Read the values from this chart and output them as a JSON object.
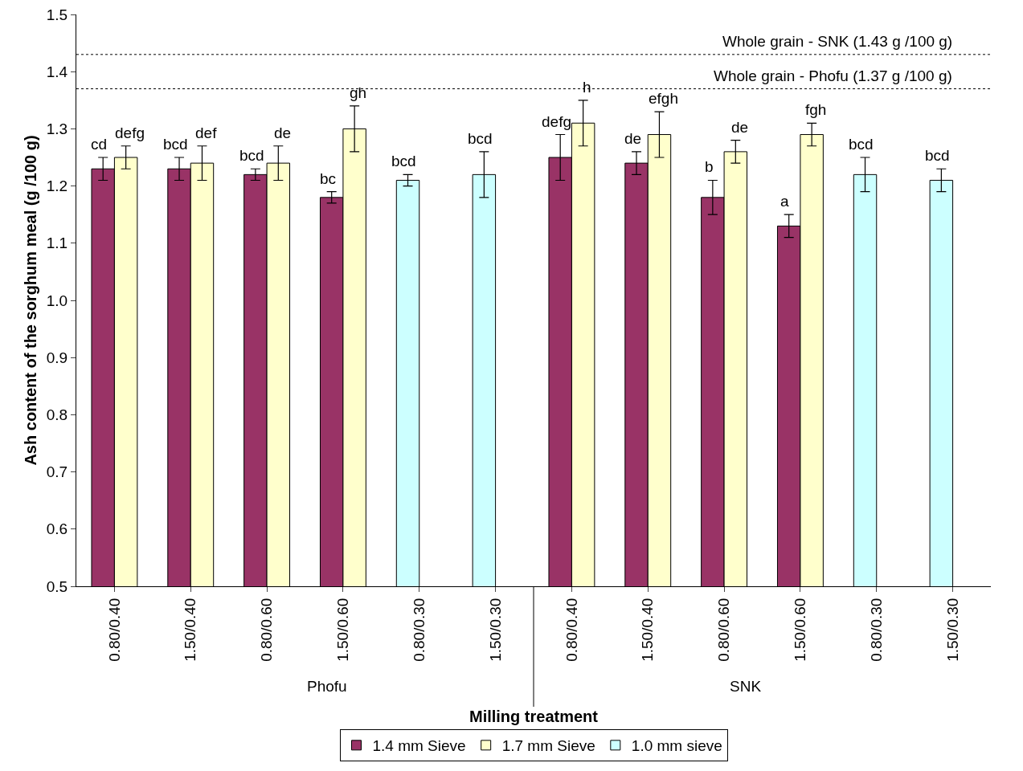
{
  "chart_data": {
    "type": "bar",
    "xlabel": "Milling treatment",
    "ylabel": "Ash content of the sorghum meal (g /100 g)",
    "categories": [
      "0.80/0.40",
      "1.50/0.40",
      "0.80/0.60",
      "1.50/0.60",
      "0.80/0.30",
      "1.50/0.30",
      "0.80/0.40",
      "1.50/0.40",
      "0.80/0.60",
      "1.50/0.60",
      "0.80/0.30",
      "1.50/0.30"
    ],
    "series": [
      {
        "name": "1.4 mm Sieve",
        "color": "#993366",
        "values": [
          1.23,
          1.23,
          1.22,
          1.18,
          null,
          null,
          1.25,
          1.24,
          1.18,
          1.13,
          null,
          null
        ],
        "errors": [
          0.02,
          0.02,
          0.01,
          0.01,
          null,
          null,
          0.04,
          0.02,
          0.03,
          0.02,
          null,
          null
        ],
        "value_labels": [
          "cd",
          "bcd",
          "bcd",
          "bc",
          null,
          null,
          "defg",
          "de",
          "b",
          "a",
          null,
          null
        ]
      },
      {
        "name": "1.7 mm Sieve",
        "color": "#ffffcc",
        "values": [
          1.25,
          1.24,
          1.24,
          1.3,
          null,
          null,
          1.31,
          1.29,
          1.26,
          1.29,
          null,
          null
        ],
        "errors": [
          0.02,
          0.03,
          0.03,
          0.04,
          null,
          null,
          0.04,
          0.04,
          0.02,
          0.02,
          null,
          null
        ],
        "value_labels": [
          "defg",
          "def",
          "de",
          "gh",
          null,
          null,
          "h",
          "efgh",
          "de",
          "fgh",
          null,
          null
        ]
      },
      {
        "name": "1.0 mm sieve",
        "color": "#ccffff",
        "values": [
          null,
          null,
          null,
          null,
          1.21,
          1.22,
          null,
          null,
          null,
          null,
          1.22,
          1.21
        ],
        "errors": [
          null,
          null,
          null,
          null,
          0.01,
          0.04,
          null,
          null,
          null,
          null,
          0.03,
          0.02
        ],
        "value_labels": [
          null,
          null,
          null,
          null,
          "bcd",
          "bcd",
          null,
          null,
          null,
          null,
          "bcd",
          "bcd"
        ]
      }
    ],
    "ylim": [
      0.5,
      1.5
    ],
    "yticks": [
      0.5,
      0.6,
      0.7,
      0.8,
      0.9,
      {
        "value": 1,
        "label": "1.0"
      },
      1.1,
      1.2,
      1.3,
      1.4,
      1.5
    ],
    "ref_lines": [
      {
        "axis": "y",
        "value": 1.43,
        "label": "Whole grain - SNK (1.43 g /100 g)",
        "color": "#000000",
        "line_style": "dotted"
      },
      {
        "axis": "y",
        "value": 1.37,
        "label": "Whole grain - Phofu (1.37 g /100 g)",
        "color": "#000000",
        "line_style": "dotted"
      }
    ],
    "annotations": [
      "Phofu",
      "SNK"
    ],
    "grid": false,
    "legend": "bottom"
  }
}
